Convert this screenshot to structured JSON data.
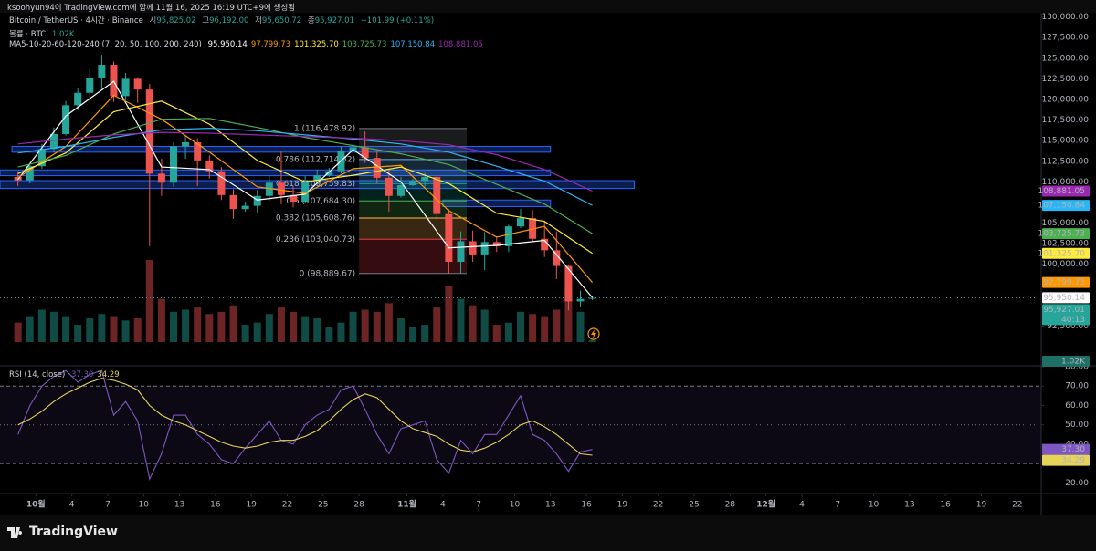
{
  "header": {
    "text": "ksoohyun94이 TradingView.com에 함께 11월 16, 2025 16:19 UTC+9에 생성됨"
  },
  "chart_data": [
    {
      "type": "candlestick",
      "legend": {
        "symbol": "Bitcoin / TetherUS · 4시간 · Binance",
        "open_prefix": "시",
        "open": "95,825.02",
        "high_prefix": "고",
        "high": "96,192.00",
        "low_prefix": "저",
        "low": "95,650.72",
        "close_prefix": "종",
        "close": "95,927.01",
        "change": "+101.99 (+0.11%)"
      },
      "countdown": "40:13",
      "up_color": "#26a69a",
      "down_color": "#ef5350",
      "x": [
        "2025-09-29",
        "2025-09-30",
        "2025-10-01",
        "2025-10-02",
        "2025-10-03",
        "2025-10-04",
        "2025-10-05",
        "2025-10-06",
        "2025-10-07",
        "2025-10-08",
        "2025-10-09",
        "2025-10-10",
        "2025-10-11",
        "2025-10-12",
        "2025-10-13",
        "2025-10-14",
        "2025-10-15",
        "2025-10-16",
        "2025-10-17",
        "2025-10-18",
        "2025-10-19",
        "2025-10-20",
        "2025-10-21",
        "2025-10-22",
        "2025-10-23",
        "2025-10-24",
        "2025-10-25",
        "2025-10-26",
        "2025-10-27",
        "2025-10-28",
        "2025-10-29",
        "2025-10-30",
        "2025-10-31",
        "2025-11-01",
        "2025-11-02",
        "2025-11-03",
        "2025-11-04",
        "2025-11-05",
        "2025-11-06",
        "2025-11-07",
        "2025-11-08",
        "2025-11-09",
        "2025-11-10",
        "2025-11-11",
        "2025-11-12",
        "2025-11-13",
        "2025-11-14",
        "2025-11-15",
        "2025-11-16"
      ],
      "open": [
        110600,
        110200,
        111900,
        114000,
        115800,
        119300,
        120800,
        122600,
        124200,
        120400,
        122500,
        121200,
        111000,
        109900,
        114300,
        114800,
        112600,
        111300,
        108400,
        106700,
        107100,
        108300,
        109900,
        108400,
        107600,
        110100,
        110800,
        111300,
        113800,
        114200,
        112900,
        110500,
        108300,
        109600,
        110100,
        110600,
        106100,
        100300,
        102800,
        101200,
        102700,
        102200,
        104600,
        105600,
        103100,
        101700,
        99800,
        95500,
        95825.02
      ],
      "high": [
        111300,
        112300,
        114600,
        116600,
        119800,
        121400,
        123600,
        125400,
        124600,
        123200,
        122700,
        121900,
        112800,
        114800,
        115600,
        115300,
        113200,
        111800,
        109100,
        107600,
        109000,
        110800,
        113800,
        109500,
        110700,
        111500,
        111700,
        114300,
        116478.92,
        116100,
        113700,
        111500,
        110600,
        110400,
        111100,
        110800,
        106700,
        104000,
        104100,
        103900,
        103400,
        104800,
        106700,
        106600,
        105300,
        104000,
        99900,
        96800,
        96192.0
      ],
      "low": [
        109500,
        109800,
        111600,
        113600,
        115600,
        118700,
        119700,
        121300,
        119700,
        119900,
        119600,
        102200,
        108300,
        109400,
        112800,
        109500,
        110400,
        107800,
        105500,
        106400,
        106300,
        107700,
        107300,
        106900,
        107400,
        109600,
        110600,
        111000,
        113700,
        112300,
        109800,
        106400,
        108100,
        109500,
        109400,
        105400,
        98889.67,
        98900,
        100300,
        99300,
        101500,
        101500,
        104400,
        102700,
        100900,
        98200,
        94400,
        94900,
        95650.72
      ],
      "close": [
        110200,
        111900,
        114000,
        115800,
        119300,
        120800,
        122600,
        124200,
        120400,
        122500,
        121200,
        111000,
        109900,
        114300,
        114800,
        112600,
        111300,
        108400,
        106700,
        107100,
        108300,
        109900,
        108400,
        107600,
        110100,
        110800,
        111300,
        113800,
        114200,
        112900,
        110500,
        108300,
        109600,
        110100,
        110600,
        106100,
        100300,
        102800,
        101200,
        102700,
        102200,
        104600,
        105600,
        103100,
        101700,
        99800,
        95500,
        95800,
        95927.01
      ],
      "volume": {
        "title": "볼륨 · BTC",
        "last_label": "1.02K",
        "values": [
          9000,
          12000,
          15000,
          14000,
          12000,
          8000,
          11000,
          13000,
          12000,
          10000,
          11000,
          38000,
          20000,
          14000,
          15000,
          16000,
          13000,
          14000,
          17000,
          8000,
          9000,
          13000,
          16000,
          14000,
          12000,
          11000,
          7000,
          9000,
          14000,
          15000,
          14000,
          18000,
          11000,
          7000,
          8000,
          16000,
          26000,
          20000,
          17000,
          15000,
          8000,
          9000,
          14000,
          13000,
          12000,
          15000,
          24000,
          14000,
          1020
        ]
      },
      "moving_averages": {
        "title": "MA5-10-20-60-120-240 (7, 20, 50, 100, 200, 240)",
        "x": [
          "2025-09-29",
          "2025-10-03",
          "2025-10-07",
          "2025-10-11",
          "2025-10-15",
          "2025-10-19",
          "2025-10-23",
          "2025-10-27",
          "2025-10-31",
          "2025-11-04",
          "2025-11-08",
          "2025-11-12",
          "2025-11-16"
        ],
        "series": [
          {
            "color": "#ffffff",
            "values": [
              110300,
              118000,
              122200,
              111800,
              111500,
              107800,
              108500,
              113900,
              110000,
              102000,
              102300,
              102900,
              95950.14
            ],
            "last_label": "95,950.14"
          },
          {
            "color": "#ff9800",
            "values": [
              110500,
              114300,
              120500,
              117600,
              113600,
              109400,
              108600,
              111600,
              112000,
              106500,
              103300,
              104600,
              97799.73
            ],
            "last_label": "97,799.73"
          },
          {
            "color": "#ffeb3b",
            "values": [
              111000,
              113500,
              118500,
              119800,
              117000,
              112600,
              110000,
              110800,
              111800,
              109800,
              106200,
              105200,
              101325.7
            ],
            "last_label": "101,325.70"
          },
          {
            "color": "#4caf50",
            "values": [
              111800,
              113200,
              115800,
              117600,
              117700,
              116600,
              115400,
              114400,
              113400,
              112100,
              109700,
              107300,
              103725.73
            ],
            "last_label": "103,725.73"
          },
          {
            "color": "#29b6f6",
            "values": [
              113500,
              114300,
              115400,
              116300,
              116500,
              116200,
              115700,
              115200,
              114600,
              113600,
              111900,
              110100,
              107150.84
            ],
            "last_label": "107,150.84"
          },
          {
            "color": "#9c27b0",
            "values": [
              114600,
              115200,
              115700,
              116000,
              115900,
              115700,
              115500,
              115300,
              115000,
              114500,
              113300,
              111500,
              108881.05
            ],
            "last_label": "108,881.05"
          }
        ]
      },
      "zones": [
        {
          "from": "2025-09-29",
          "to": "2025-11-13",
          "low": 113600,
          "high": 114300
        },
        {
          "from": "2025-09-28",
          "to": "2025-11-13",
          "low": 110750,
          "high": 111450
        },
        {
          "from": "2025-09-28",
          "to": "2025-11-20",
          "low": 109200,
          "high": 110150
        },
        {
          "from": "2025-11-04",
          "to": "2025-11-13",
          "low": 107000,
          "high": 107800
        }
      ],
      "zone_color": "#2962ff",
      "fibonacci": {
        "from": "2025-10-28",
        "to": "2025-11-06",
        "levels": [
          {
            "value": 116478.92,
            "label": "1 (116,478.92)",
            "color": "#787b86"
          },
          {
            "value": 112714.82,
            "label": "0.786 (112,714.82)",
            "color": "#64b5f6"
          },
          {
            "value": 109759.83,
            "label": "0.618 (109,759.83)",
            "color": "#089981"
          },
          {
            "value": 107684.3,
            "label": "0.5 (107,684.30)",
            "color": "#4caf50"
          },
          {
            "value": 105608.76,
            "label": "0.382 (105,608.76)",
            "color": "#ffb74d"
          },
          {
            "value": 103040.73,
            "label": "0.236 (103,040.73)",
            "color": "#f23645"
          },
          {
            "value": 98889.67,
            "label": "0 (98,889.67)",
            "color": "#787b86"
          }
        ]
      },
      "xlim": [
        "2025-09-28",
        "2025-12-24"
      ],
      "xticks": [
        {
          "value": "2025-10-01",
          "label": "10월"
        },
        {
          "value": "2025-10-04",
          "label": "4"
        },
        {
          "value": "2025-10-07",
          "label": "7"
        },
        {
          "value": "2025-10-10",
          "label": "10"
        },
        {
          "value": "2025-10-13",
          "label": "13"
        },
        {
          "value": "2025-10-16",
          "label": "16"
        },
        {
          "value": "2025-10-19",
          "label": "19"
        },
        {
          "value": "2025-10-22",
          "label": "22"
        },
        {
          "value": "2025-10-25",
          "label": "25"
        },
        {
          "value": "2025-10-28",
          "label": "28"
        },
        {
          "value": "2025-11-01",
          "label": "11월"
        },
        {
          "value": "2025-11-04",
          "label": "4"
        },
        {
          "value": "2025-11-07",
          "label": "7"
        },
        {
          "value": "2025-11-10",
          "label": "10"
        },
        {
          "value": "2025-11-13",
          "label": "13"
        },
        {
          "value": "2025-11-16",
          "label": "16"
        },
        {
          "value": "2025-11-19",
          "label": "19"
        },
        {
          "value": "2025-11-22",
          "label": "22"
        },
        {
          "value": "2025-11-25",
          "label": "25"
        },
        {
          "value": "2025-11-28",
          "label": "28"
        },
        {
          "value": "2025-12-01",
          "label": "12월"
        },
        {
          "value": "2025-12-04",
          "label": "4"
        },
        {
          "value": "2025-12-07",
          "label": "7"
        },
        {
          "value": "2025-12-10",
          "label": "10"
        },
        {
          "value": "2025-12-13",
          "label": "13"
        },
        {
          "value": "2025-12-16",
          "label": "16"
        },
        {
          "value": "2025-12-19",
          "label": "19"
        },
        {
          "value": "2025-12-22",
          "label": "22"
        }
      ],
      "ylim": [
        87800,
        130400
      ],
      "yticks": [
        {
          "value": 130000,
          "label": "130,000.00"
        },
        {
          "value": 127500,
          "label": "127,500.00"
        },
        {
          "value": 125000,
          "label": "125,000.00"
        },
        {
          "value": 122500,
          "label": "122,500.00"
        },
        {
          "value": 120000,
          "label": "120,000.00"
        },
        {
          "value": 117500,
          "label": "117,500.00"
        },
        {
          "value": 115000,
          "label": "115,000.00"
        },
        {
          "value": 112500,
          "label": "112,500.00"
        },
        {
          "value": 110000,
          "label": "110,000.00"
        },
        {
          "value": 105000,
          "label": "105,000.00"
        },
        {
          "value": 102500,
          "label": "102,500.00"
        },
        {
          "value": 100000,
          "label": "100,000.00"
        },
        {
          "value": 92500,
          "label": "92,500.00"
        }
      ],
      "grid": false
    },
    {
      "type": "line",
      "title": "RSI (14, close)",
      "x": [
        "2025-09-29",
        "2025-09-30",
        "2025-10-01",
        "2025-10-02",
        "2025-10-03",
        "2025-10-04",
        "2025-10-05",
        "2025-10-06",
        "2025-10-07",
        "2025-10-08",
        "2025-10-09",
        "2025-10-10",
        "2025-10-11",
        "2025-10-12",
        "2025-10-13",
        "2025-10-14",
        "2025-10-15",
        "2025-10-16",
        "2025-10-17",
        "2025-10-18",
        "2025-10-19",
        "2025-10-20",
        "2025-10-21",
        "2025-10-22",
        "2025-10-23",
        "2025-10-24",
        "2025-10-25",
        "2025-10-26",
        "2025-10-27",
        "2025-10-28",
        "2025-10-29",
        "2025-10-30",
        "2025-10-31",
        "2025-11-01",
        "2025-11-02",
        "2025-11-03",
        "2025-11-04",
        "2025-11-05",
        "2025-11-06",
        "2025-11-07",
        "2025-11-08",
        "2025-11-09",
        "2025-11-10",
        "2025-11-11",
        "2025-11-12",
        "2025-11-13",
        "2025-11-14",
        "2025-11-15",
        "2025-11-16"
      ],
      "series": [
        {
          "color": "#7e57c2",
          "last_label": "37.30",
          "values": [
            45,
            60,
            70,
            75,
            78,
            72,
            76,
            78,
            55,
            62,
            52,
            22,
            35,
            55,
            55,
            45,
            40,
            32,
            30,
            38,
            45,
            52,
            42,
            40,
            50,
            55,
            58,
            68,
            70,
            58,
            45,
            35,
            48,
            50,
            52,
            32,
            25,
            42,
            35,
            45,
            45,
            55,
            65,
            45,
            42,
            35,
            26,
            36,
            37.3
          ]
        },
        {
          "color": "#e6d35a",
          "last_label": "34.29",
          "values": [
            50,
            53,
            57,
            62,
            66,
            69,
            72,
            74,
            73,
            71,
            68,
            60,
            55,
            52,
            50,
            47,
            44,
            41,
            39,
            38,
            39,
            41,
            42,
            42,
            44,
            47,
            52,
            58,
            63,
            66,
            64,
            58,
            52,
            48,
            46,
            44,
            40,
            37,
            36,
            38,
            41,
            45,
            50,
            52,
            49,
            45,
            40,
            35,
            34.29
          ]
        }
      ],
      "bands": [
        70,
        50,
        30
      ],
      "ylim": [
        15,
        80
      ],
      "yticks": [
        {
          "value": 80,
          "label": "80.00"
        },
        {
          "value": 70,
          "label": "70.00"
        },
        {
          "value": 60,
          "label": "60.00"
        },
        {
          "value": 50,
          "label": "50.00"
        },
        {
          "value": 40,
          "label": "40.00"
        },
        {
          "value": 20,
          "label": "20.00"
        }
      ]
    }
  ],
  "footer": {
    "logo": "TradingView"
  }
}
